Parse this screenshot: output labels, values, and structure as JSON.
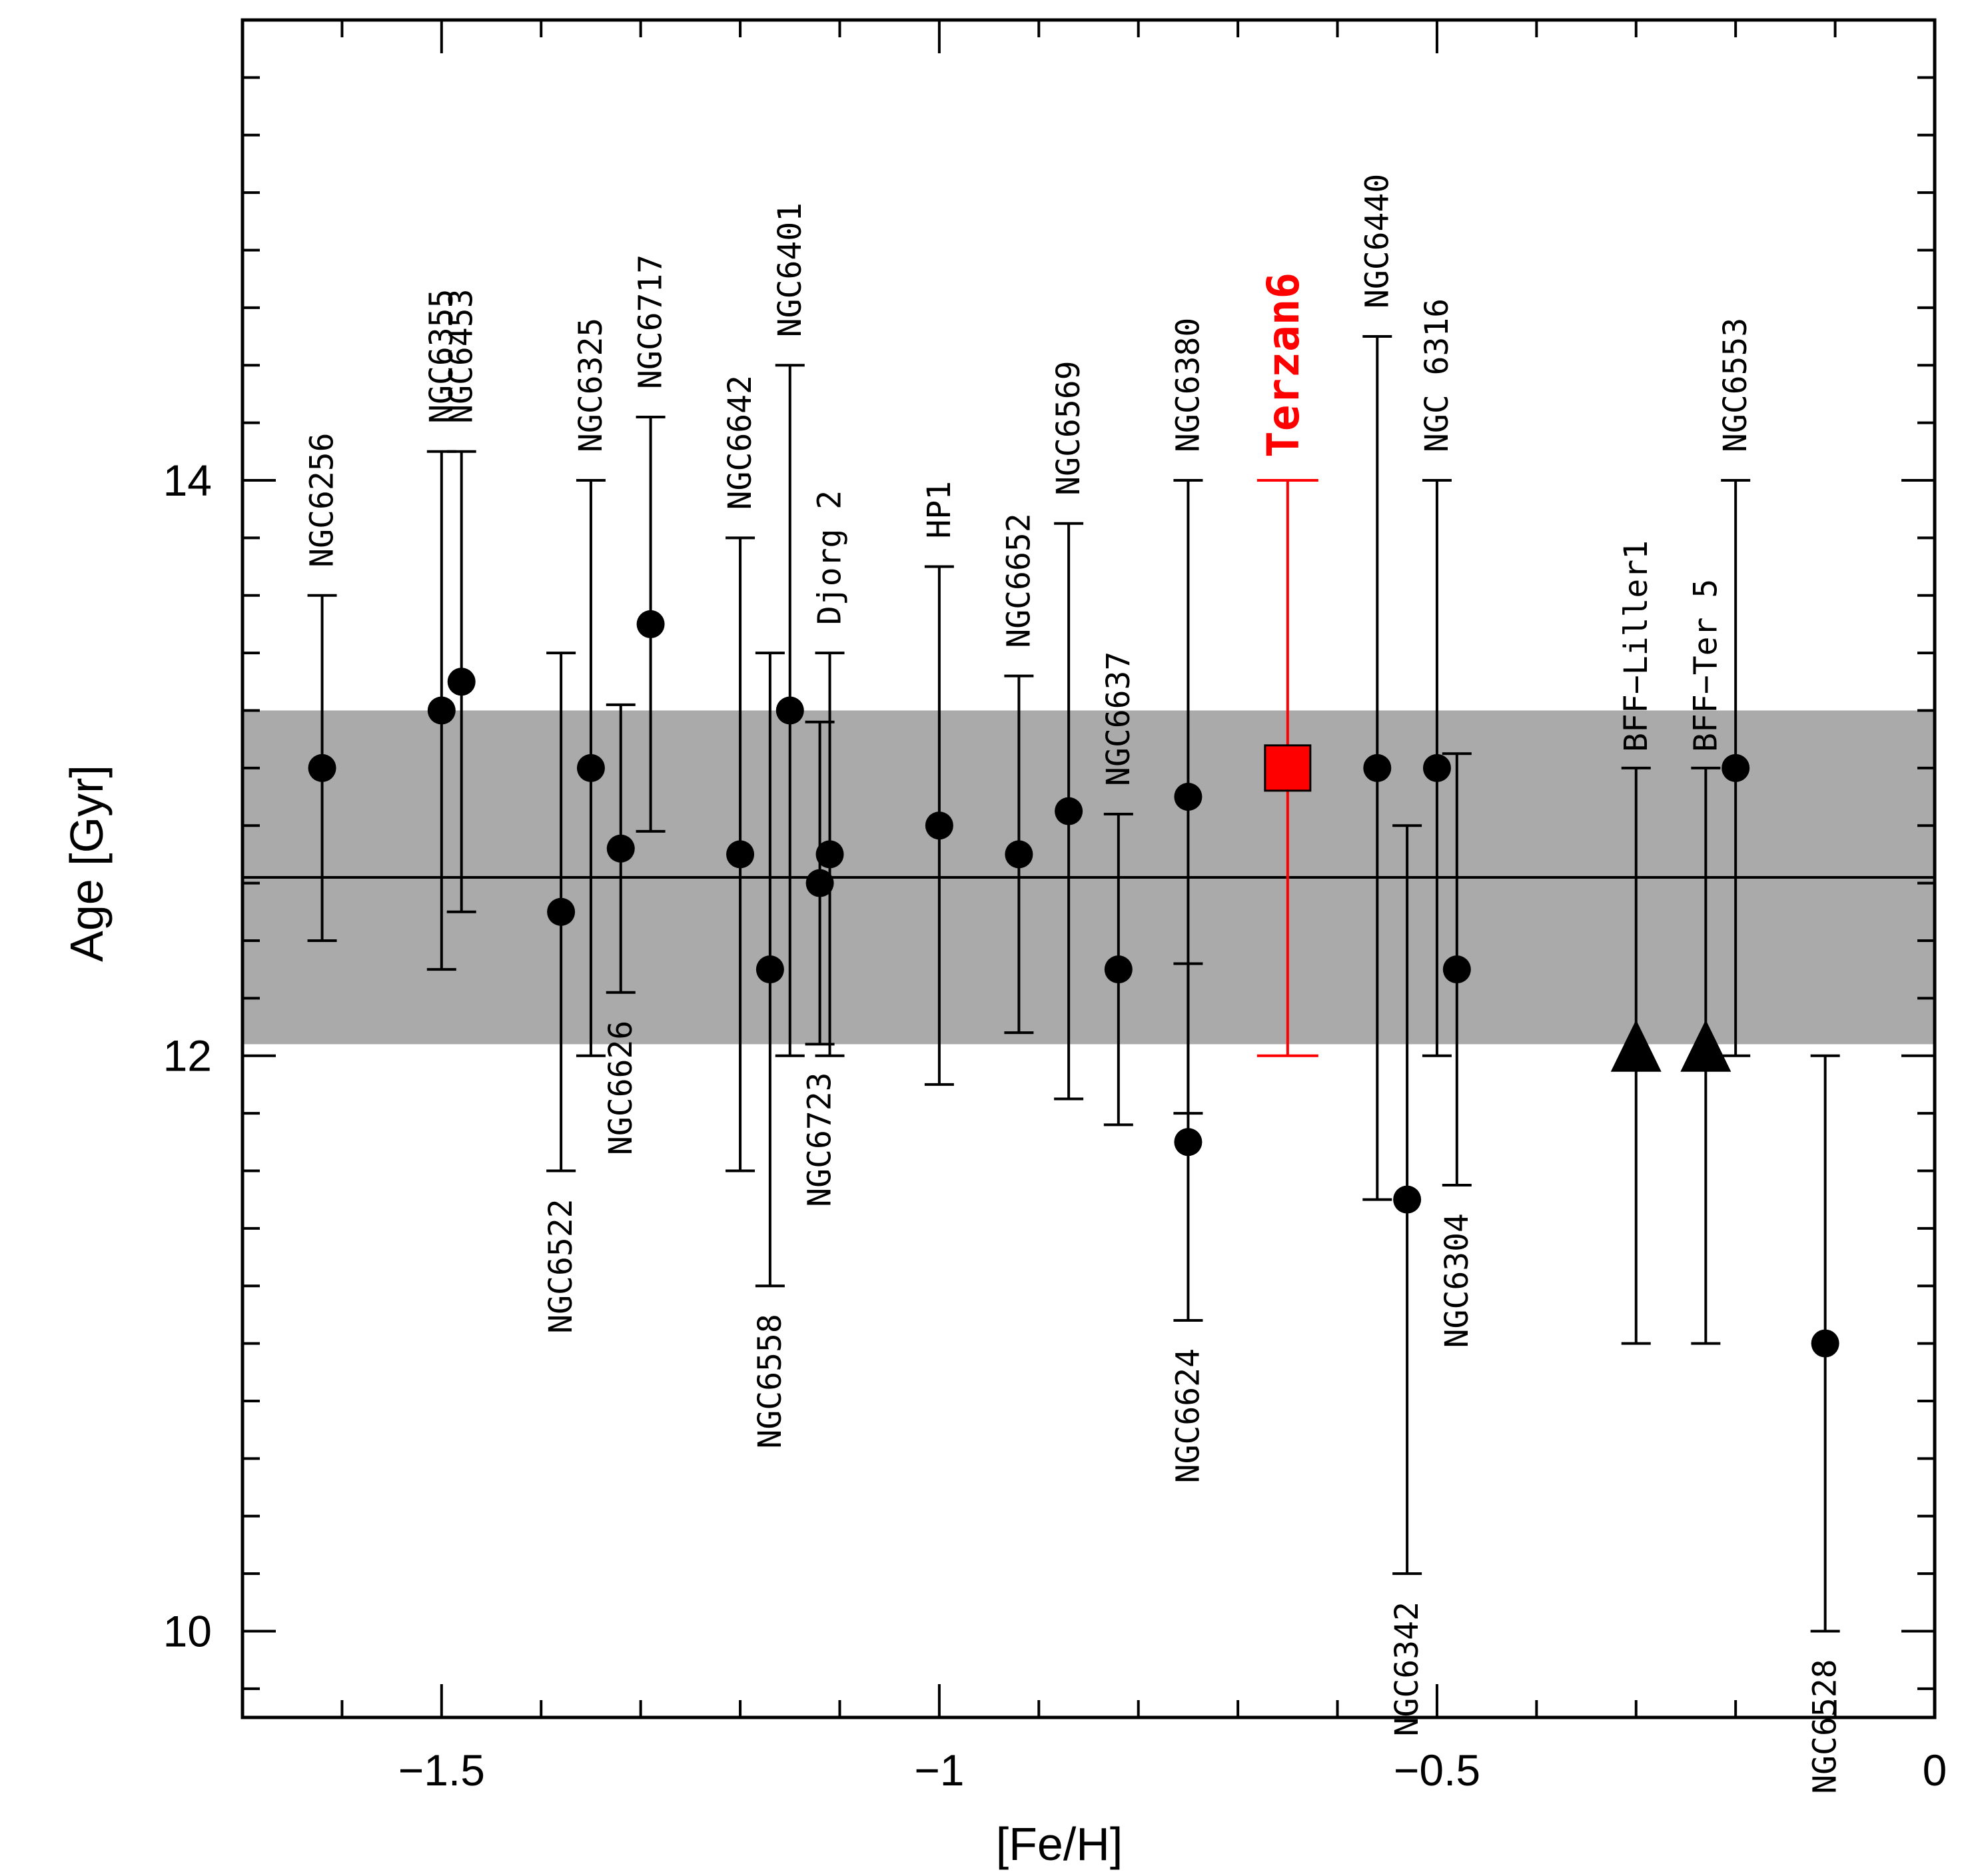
{
  "chart_data": {
    "type": "scatter",
    "xlabel": "[Fe/H]",
    "ylabel": "Age [Gyr]",
    "xlim": [
      -1.7,
      0.0
    ],
    "ylim": [
      9.7,
      15.6
    ],
    "xticks": [
      -1.5,
      -1.0,
      -0.5,
      0.0
    ],
    "xtick_labels": [
      "−1.5",
      "−1",
      "−0.5",
      "0"
    ],
    "yticks": [
      10,
      12,
      14
    ],
    "ytick_labels": [
      "10",
      "12",
      "14"
    ],
    "mean_age": 12.62,
    "band": [
      12.04,
      13.2
    ],
    "colors": {
      "points": "#000000",
      "highlight": "#ff0000",
      "band": "#aaaaaa"
    },
    "clusters": [
      {
        "name": "NGC6256",
        "feh": -1.62,
        "age": 13.0,
        "low": 12.4,
        "high": 13.6,
        "label_side": "above"
      },
      {
        "name": "NGC6355",
        "feh": -1.5,
        "age": 13.2,
        "low": 12.3,
        "high": 14.1,
        "label_side": "above"
      },
      {
        "name": "NGC6453",
        "feh": -1.48,
        "age": 13.3,
        "low": 12.5,
        "high": 14.1,
        "label_side": "above"
      },
      {
        "name": "NGC6522",
        "feh": -1.38,
        "age": 12.5,
        "low": 11.6,
        "high": 13.4,
        "label_side": "below"
      },
      {
        "name": "NGC6325",
        "feh": -1.35,
        "age": 13.0,
        "low": 12.0,
        "high": 14.0,
        "label_side": "above"
      },
      {
        "name": "NGC6626",
        "feh": -1.32,
        "age": 12.72,
        "low": 12.22,
        "high": 13.22,
        "label_side": "below"
      },
      {
        "name": "NGC6717",
        "feh": -1.29,
        "age": 13.5,
        "low": 12.78,
        "high": 14.22,
        "label_side": "above"
      },
      {
        "name": "NGC6642",
        "feh": -1.2,
        "age": 12.7,
        "low": 11.6,
        "high": 13.8,
        "label_side": "above"
      },
      {
        "name": "NGC6558",
        "feh": -1.17,
        "age": 12.3,
        "low": 11.2,
        "high": 13.4,
        "label_side": "below"
      },
      {
        "name": "NGC6401",
        "feh": -1.15,
        "age": 13.2,
        "low": 12.0,
        "high": 14.4,
        "label_side": "above"
      },
      {
        "name": "NGC6723",
        "feh": -1.12,
        "age": 12.6,
        "low": 12.04,
        "high": 13.16,
        "label_side": "below"
      },
      {
        "name": "Djorg 2",
        "feh": -1.11,
        "age": 12.7,
        "low": 12.0,
        "high": 13.4,
        "label_side": "above"
      },
      {
        "name": "HP1",
        "feh": -1.0,
        "age": 12.8,
        "low": 11.9,
        "high": 13.7,
        "label_side": "above"
      },
      {
        "name": "NGC6652",
        "feh": -0.92,
        "age": 12.7,
        "low": 12.08,
        "high": 13.32,
        "label_side": "above"
      },
      {
        "name": "NGC6569",
        "feh": -0.87,
        "age": 12.85,
        "low": 11.85,
        "high": 13.85,
        "label_side": "above"
      },
      {
        "name": "NGC6637",
        "feh": -0.82,
        "age": 12.3,
        "low": 11.76,
        "high": 12.84,
        "label_side": "above"
      },
      {
        "name": "NGC6380",
        "feh": -0.75,
        "age": 12.9,
        "low": 11.8,
        "high": 14.0,
        "label_side": "above"
      },
      {
        "name": "NGC6624",
        "feh": -0.75,
        "age": 11.7,
        "low": 11.08,
        "high": 12.32,
        "label_side": "below"
      },
      {
        "name": "NGC6440",
        "feh": -0.56,
        "age": 13.0,
        "low": 11.5,
        "high": 14.5,
        "label_side": "above"
      },
      {
        "name": "NGC6342",
        "feh": -0.53,
        "age": 11.5,
        "low": 10.2,
        "high": 12.8,
        "label_side": "below"
      },
      {
        "name": "NGC 6316",
        "feh": -0.5,
        "age": 13.0,
        "low": 12.0,
        "high": 14.0,
        "label_side": "above"
      },
      {
        "name": "NGC6304",
        "feh": -0.48,
        "age": 12.3,
        "low": 11.55,
        "high": 13.05,
        "label_side": "below"
      },
      {
        "name": "NGC6553",
        "feh": -0.2,
        "age": 13.0,
        "low": 12.0,
        "high": 14.0,
        "label_side": "above"
      },
      {
        "name": "NGC6528",
        "feh": -0.11,
        "age": 11.0,
        "low": 10.0,
        "high": 12.0,
        "label_side": "below"
      }
    ],
    "lower_limits": [
      {
        "name": "BFF−Liller1",
        "feh": -0.3,
        "age": 12.0,
        "low": 11.0,
        "high": 13.0
      },
      {
        "name": "BFF−Ter 5",
        "feh": -0.23,
        "age": 12.0,
        "low": 11.0,
        "high": 13.0
      }
    ],
    "highlight": {
      "name": "Terzan6",
      "feh": -0.65,
      "age": 13.0,
      "low": 12.0,
      "high": 14.0
    }
  }
}
